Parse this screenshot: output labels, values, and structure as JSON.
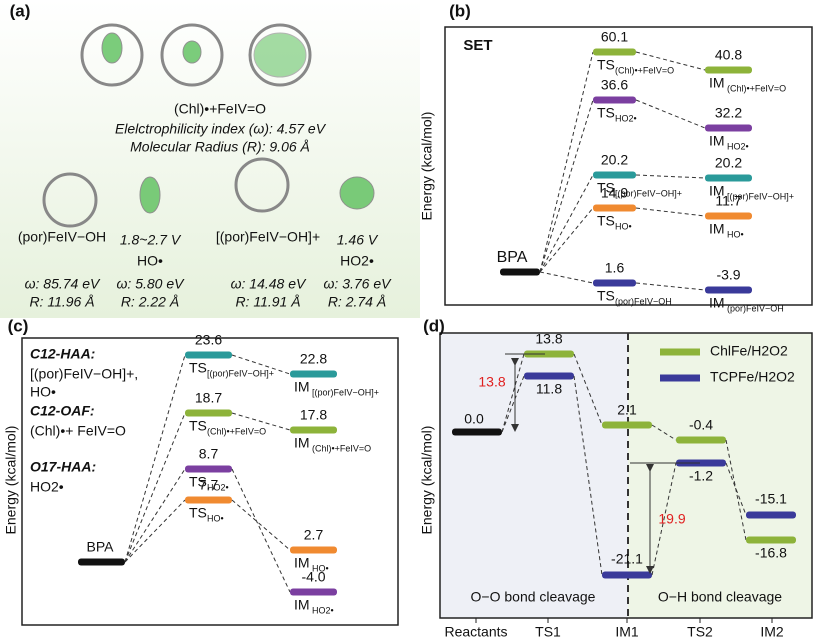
{
  "panel_a": {
    "label": "(a)",
    "main_species": "(Chl)•+FeIV=O",
    "electrophilicity": "Elelctrophilicity index (ω): 4.57 eV",
    "radius": "Molecular Radius (R): 9.06 Å",
    "species": [
      {
        "name": "(por)FeIV−OH",
        "omega": "ω: 85.74 eV",
        "r": "R: 11.96 Å"
      },
      {
        "potential": "1.8~2.7 V",
        "name": "HO•",
        "omega": "ω: 5.80 eV",
        "r": "R: 2.22 Å"
      },
      {
        "name": "[(por)FeIV−OH]+",
        "omega": "ω: 14.48 eV",
        "r": "R: 11.91 Å"
      },
      {
        "potential": "1.46 V",
        "name": "HO2•",
        "omega": "ω: 3.76 eV",
        "r": "R: 2.74 Å"
      }
    ]
  },
  "panel_b": {
    "label": "(b)",
    "ylabel": "Energy (kcal/mol)",
    "mechanism": "SET",
    "start": "BPA",
    "ts": [
      {
        "value": 60.1,
        "name": "TS",
        "sub": "(Chl)•+FeIV=O",
        "color": "#8db33a"
      },
      {
        "value": 36.6,
        "name": "TS",
        "sub": "HO2•",
        "color": "#7b3fa0"
      },
      {
        "value": 20.2,
        "name": "TS",
        "sub": "[(por)FeIV−OH]+",
        "color": "#2a9a9a"
      },
      {
        "value": 14.9,
        "name": "TS",
        "sub": "HO•",
        "color": "#f08a30"
      },
      {
        "value": 1.6,
        "name": "TS",
        "sub": "(por)FeIV−OH",
        "color": "#3a3a9a"
      }
    ],
    "im": [
      {
        "value": 40.8,
        "name": "IM",
        "sub": "(Chl)•+FeIV=O",
        "color": "#8db33a"
      },
      {
        "value": 32.2,
        "name": "IM",
        "sub": "HO2•",
        "color": "#7b3fa0"
      },
      {
        "value": 20.2,
        "name": "IM",
        "sub": "[(por)FeIV−OH]+",
        "color": "#2a9a9a"
      },
      {
        "value": 11.7,
        "name": "IM",
        "sub": "HO•",
        "color": "#f08a30"
      },
      {
        "value": -3.9,
        "name": "IM",
        "sub": "(por)FeIV−OH",
        "color": "#3a3a9a"
      }
    ]
  },
  "panel_c": {
    "label": "(c)",
    "ylabel": "Energy (kcal/mol)",
    "start": "BPA",
    "groups": [
      {
        "title": "C12-HAA:",
        "text": "[(por)FeIV−OH]+,",
        "text2": "HO•"
      },
      {
        "title": "C12-OAF:",
        "text": "(Chl)•+ FeIV=O"
      },
      {
        "title": "O17-HAA:",
        "text": "HO2•"
      }
    ],
    "ts": [
      {
        "value": 23.6,
        "name": "TS",
        "sub": "[(por)FeIV−OH]+",
        "color": "#2a9a9a"
      },
      {
        "value": 18.7,
        "name": "TS",
        "sub": "(Chl)•+FeIV=O",
        "color": "#8db33a"
      },
      {
        "value": 8.7,
        "name": "TS",
        "sub": "HO2•",
        "color": "#7b3fa0"
      },
      {
        "value": 7.7,
        "name": "TS",
        "sub": "HO•",
        "color": "#f08a30"
      }
    ],
    "im": [
      {
        "value": 22.8,
        "name": "IM",
        "sub": "[(por)FeIV−OH]+",
        "color": "#2a9a9a"
      },
      {
        "value": 17.8,
        "name": "IM",
        "sub": "(Chl)•+FeIV=O",
        "color": "#8db33a"
      },
      {
        "value": 2.7,
        "name": "IM",
        "sub": "HO•",
        "color": "#f08a30"
      },
      {
        "value": -4.0,
        "name": "IM",
        "sub": "HO2•",
        "color": "#7b3fa0"
      }
    ]
  },
  "panel_d": {
    "label": "(d)",
    "ylabel": "Energy (kcal/mol)",
    "categories": [
      "Reactants",
      "TS1",
      "IM1",
      "TS2",
      "IM2"
    ],
    "reactants": {
      "value": 0.0,
      "label": "0.0"
    },
    "series": [
      {
        "name": "ChlFe/H2O2",
        "color": "#8db33a",
        "values": [
          13.8,
          2.1,
          -0.4,
          -16.8
        ]
      },
      {
        "name": "TCPFe/H2O2",
        "color": "#3a3a9a",
        "values": [
          11.8,
          -21.1,
          -1.2,
          -15.1
        ]
      }
    ],
    "barrier1": 13.8,
    "barrier2": 19.9,
    "region1": "O−O bond cleavage",
    "region2": "O−H bond cleavage"
  }
}
